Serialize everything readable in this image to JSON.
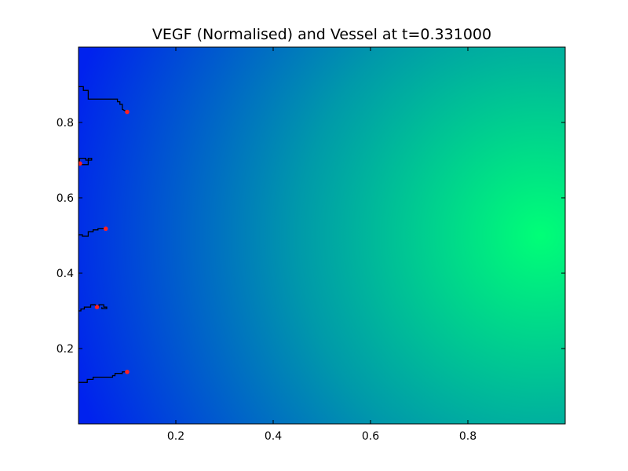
{
  "chart_data": {
    "type": "heatmap",
    "title": "VEGF (Normalised) and Vessel at t=0.331000",
    "xlabel": "",
    "ylabel": "",
    "xlim": [
      0,
      1
    ],
    "ylim": [
      0,
      1
    ],
    "x_ticks": [
      0.2,
      0.4,
      0.6,
      0.8
    ],
    "x_tick_labels": [
      "0.2",
      "0.4",
      "0.6",
      "0.8"
    ],
    "y_ticks": [
      0.2,
      0.4,
      0.6,
      0.8
    ],
    "y_tick_labels": [
      "0.2",
      "0.4",
      "0.6",
      "0.8"
    ],
    "grid": false,
    "colormap": {
      "low_color": "#0022ee",
      "mid_color": "#0099aa",
      "high_color": "#00ff77",
      "peak": [
        0.95,
        0.5
      ]
    },
    "vessels": [
      {
        "name": "",
        "color": "#000000",
        "path": [
          [
            0.0,
            0.895
          ],
          [
            0.01,
            0.895
          ],
          [
            0.01,
            0.885
          ],
          [
            0.02,
            0.885
          ],
          [
            0.02,
            0.862
          ],
          [
            0.08,
            0.862
          ],
          [
            0.08,
            0.855
          ],
          [
            0.085,
            0.855
          ],
          [
            0.085,
            0.848
          ],
          [
            0.09,
            0.848
          ],
          [
            0.09,
            0.835
          ],
          [
            0.1,
            0.828
          ]
        ],
        "tip": [
          0.1,
          0.828
        ]
      },
      {
        "name": "",
        "color": "#000000",
        "path": [
          [
            0.0,
            0.69
          ],
          [
            0.005,
            0.69
          ],
          [
            0.005,
            0.688
          ],
          [
            0.02,
            0.688
          ],
          [
            0.02,
            0.705
          ],
          [
            0.027,
            0.705
          ],
          [
            0.027,
            0.7
          ],
          [
            0.015,
            0.7
          ],
          [
            0.015,
            0.705
          ],
          [
            0.002,
            0.705
          ],
          [
            0.002,
            0.692
          ]
        ],
        "tip": [
          0.003,
          0.691
        ]
      },
      {
        "name": "",
        "color": "#000000",
        "path": [
          [
            0.0,
            0.502
          ],
          [
            0.008,
            0.502
          ],
          [
            0.008,
            0.498
          ],
          [
            0.02,
            0.498
          ],
          [
            0.02,
            0.51
          ],
          [
            0.03,
            0.51
          ],
          [
            0.03,
            0.515
          ],
          [
            0.04,
            0.515
          ],
          [
            0.04,
            0.518
          ],
          [
            0.056,
            0.518
          ]
        ],
        "tip": [
          0.056,
          0.518
        ]
      },
      {
        "name": "",
        "color": "#000000",
        "path": [
          [
            0.0,
            0.3
          ],
          [
            0.005,
            0.3
          ],
          [
            0.005,
            0.305
          ],
          [
            0.012,
            0.305
          ],
          [
            0.012,
            0.31
          ],
          [
            0.025,
            0.31
          ],
          [
            0.025,
            0.316
          ],
          [
            0.035,
            0.316
          ],
          [
            0.035,
            0.31
          ],
          [
            0.042,
            0.31
          ],
          [
            0.042,
            0.316
          ],
          [
            0.052,
            0.316
          ],
          [
            0.052,
            0.31
          ],
          [
            0.058,
            0.31
          ],
          [
            0.058,
            0.306
          ],
          [
            0.048,
            0.306
          ],
          [
            0.048,
            0.31
          ]
        ],
        "tip": [
          0.038,
          0.31
        ]
      },
      {
        "name": "",
        "color": "#000000",
        "path": [
          [
            0.0,
            0.11
          ],
          [
            0.018,
            0.11
          ],
          [
            0.018,
            0.118
          ],
          [
            0.03,
            0.118
          ],
          [
            0.03,
            0.124
          ],
          [
            0.07,
            0.124
          ],
          [
            0.07,
            0.128
          ],
          [
            0.075,
            0.128
          ],
          [
            0.075,
            0.134
          ],
          [
            0.09,
            0.134
          ],
          [
            0.09,
            0.138
          ],
          [
            0.1,
            0.138
          ]
        ],
        "tip": [
          0.1,
          0.138
        ]
      }
    ]
  }
}
